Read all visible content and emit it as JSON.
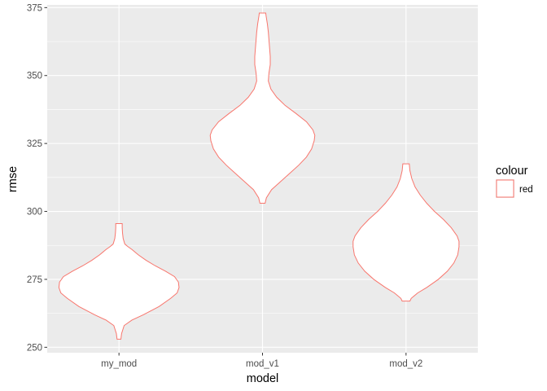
{
  "chart_data": {
    "type": "violin",
    "title": "",
    "xlabel": "model",
    "ylabel": "rmse",
    "categories": [
      "my_mod",
      "mod_v1",
      "mod_v2"
    ],
    "ylim": [
      248,
      376
    ],
    "yticks": [
      250,
      275,
      300,
      325,
      350,
      375
    ],
    "grid": true,
    "colors": {
      "panel": "#ebebeb",
      "grid": "#ffffff",
      "outline": "#f8766d",
      "fill": "#ffffff",
      "tick": "#333333"
    },
    "legend": {
      "title": "colour",
      "position": "right",
      "entries": [
        {
          "label": "red",
          "color": "#f8766d"
        }
      ]
    },
    "violins": [
      {
        "category": "my_mod",
        "profile": [
          [
            253,
            0.03
          ],
          [
            255,
            0.04
          ],
          [
            258,
            0.08
          ],
          [
            260,
            0.2
          ],
          [
            262,
            0.38
          ],
          [
            265,
            0.62
          ],
          [
            268,
            0.8
          ],
          [
            270,
            0.9
          ],
          [
            272,
            0.93
          ],
          [
            274,
            0.92
          ],
          [
            276,
            0.86
          ],
          [
            278,
            0.72
          ],
          [
            280,
            0.56
          ],
          [
            282,
            0.42
          ],
          [
            284,
            0.3
          ],
          [
            286,
            0.2
          ],
          [
            287,
            0.14
          ],
          [
            288,
            0.09
          ],
          [
            290,
            0.065
          ],
          [
            292,
            0.055
          ],
          [
            294,
            0.05
          ],
          [
            295.5,
            0.05
          ]
        ]
      },
      {
        "category": "mod_v1",
        "profile": [
          [
            303,
            0.04
          ],
          [
            305,
            0.06
          ],
          [
            308,
            0.14
          ],
          [
            311,
            0.28
          ],
          [
            314,
            0.42
          ],
          [
            317,
            0.56
          ],
          [
            320,
            0.68
          ],
          [
            323,
            0.76
          ],
          [
            326,
            0.8
          ],
          [
            328,
            0.81
          ],
          [
            330,
            0.78
          ],
          [
            333,
            0.68
          ],
          [
            336,
            0.52
          ],
          [
            339,
            0.35
          ],
          [
            342,
            0.22
          ],
          [
            345,
            0.13
          ],
          [
            348,
            0.09
          ],
          [
            351,
            0.1
          ],
          [
            354,
            0.12
          ],
          [
            357,
            0.12
          ],
          [
            360,
            0.11
          ],
          [
            363,
            0.1
          ],
          [
            366,
            0.09
          ],
          [
            369,
            0.075
          ],
          [
            372,
            0.055
          ],
          [
            373,
            0.05
          ]
        ]
      },
      {
        "category": "mod_v2",
        "profile": [
          [
            267,
            0.06
          ],
          [
            268,
            0.08
          ],
          [
            270,
            0.18
          ],
          [
            272,
            0.32
          ],
          [
            275,
            0.5
          ],
          [
            278,
            0.64
          ],
          [
            281,
            0.74
          ],
          [
            284,
            0.8
          ],
          [
            287,
            0.82
          ],
          [
            289,
            0.82
          ],
          [
            291,
            0.79
          ],
          [
            294,
            0.7
          ],
          [
            297,
            0.58
          ],
          [
            300,
            0.44
          ],
          [
            303,
            0.32
          ],
          [
            306,
            0.22
          ],
          [
            309,
            0.14
          ],
          [
            312,
            0.09
          ],
          [
            315,
            0.06
          ],
          [
            317.5,
            0.05
          ]
        ]
      }
    ]
  }
}
